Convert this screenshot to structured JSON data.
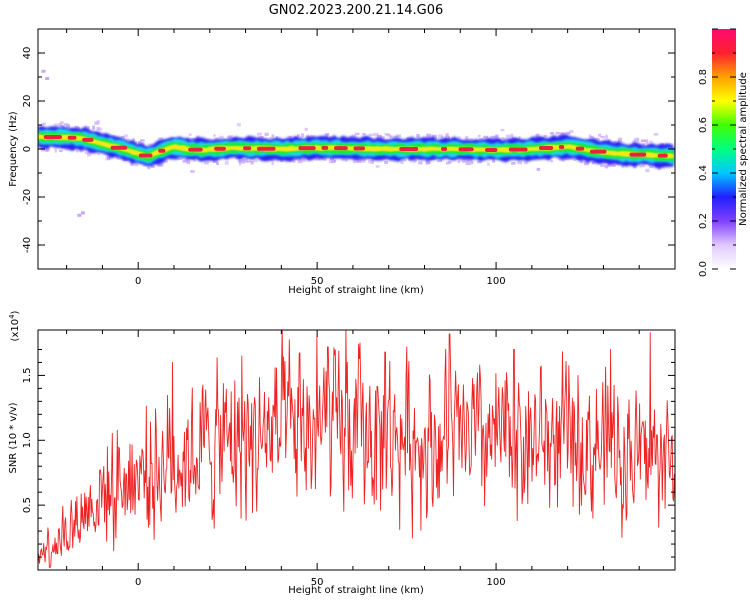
{
  "title": "GN02.2023.200.21.14.G06",
  "colors": {
    "snr_line": "#ee2222",
    "ridge_core": "#e8233a",
    "ridge_inner": "#f6e819",
    "ridge_mid": "#19e83c",
    "ridge_outer": "#1fd8e6",
    "ridge_edge": "#2b24f0",
    "halo": "#c9a6f7"
  },
  "chart_data": [
    {
      "type": "heatmap",
      "name": "spectrogram",
      "xlabel": "Height of straight line (km)",
      "ylabel": "Frequency (Hz)",
      "xlim": [
        -28,
        150
      ],
      "ylim": [
        -50,
        50
      ],
      "xticks": [
        0,
        50,
        100
      ],
      "yticks": [
        -40,
        -20,
        0,
        20,
        40
      ],
      "colorbar": {
        "label": "Normalized spectral amplitude",
        "range": [
          0,
          1
        ],
        "ticks": [
          "0.0",
          "0.2",
          "0.4",
          "0.6",
          "0.8"
        ],
        "tick_values": [
          0,
          0.2,
          0.4,
          0.6,
          0.8
        ],
        "colormap": [
          "#ffffff",
          "#e0c8ff",
          "#8040ff",
          "#2020ff",
          "#00c8ff",
          "#00ff80",
          "#40ff00",
          "#ffff00",
          "#ffa000",
          "#ff2030",
          "#ff0a70"
        ]
      },
      "ridge": {
        "x": [
          -28,
          -22,
          -16,
          -12,
          -8,
          -4,
          0,
          3,
          6,
          10,
          14,
          18,
          22,
          26,
          30,
          40,
          50,
          60,
          70,
          80,
          90,
          100,
          110,
          120,
          128,
          135,
          142,
          150
        ],
        "freq_hz": [
          5,
          5,
          4.5,
          3,
          1.5,
          0,
          -2,
          -3,
          -1,
          1,
          0,
          -0.5,
          0,
          0.5,
          0.3,
          0,
          0.5,
          0.3,
          0,
          0,
          0,
          -0.5,
          0,
          1,
          -1,
          -2,
          -2.5,
          -3
        ]
      }
    },
    {
      "type": "line",
      "name": "snr",
      "xlabel": "Height of straight line (km)",
      "ylabel": "SNR (10 * v/v)",
      "scale_label": "(x10",
      "scale_exp": "4",
      "scale_close": ")",
      "xlim": [
        -28,
        150
      ],
      "ylim": [
        0,
        1.85
      ],
      "xticks": [
        0,
        50,
        100
      ],
      "yticks": [
        0.5,
        1.0,
        1.5
      ],
      "ytick_labels": [
        "0.5",
        "1.0",
        "1.5"
      ],
      "trend": {
        "x": [
          -28,
          -20,
          -10,
          0,
          10,
          20,
          30,
          40,
          50,
          60,
          70,
          80,
          90,
          100,
          110,
          120,
          130,
          140,
          150
        ],
        "y": [
          0.15,
          0.3,
          0.6,
          0.75,
          0.85,
          0.95,
          1.0,
          1.05,
          1.08,
          1.05,
          1.02,
          1.0,
          1.0,
          1.0,
          1.0,
          1.0,
          0.95,
          0.9,
          0.85
        ]
      },
      "peaks": [
        {
          "x": 9.5,
          "y": 1.6
        },
        {
          "x": 29,
          "y": 1.65
        },
        {
          "x": 45,
          "y": 1.67
        },
        {
          "x": 50,
          "y": 1.8
        },
        {
          "x": 53,
          "y": 1.72
        },
        {
          "x": 58,
          "y": 1.85
        },
        {
          "x": 62,
          "y": 1.75
        },
        {
          "x": 69,
          "y": 1.68
        },
        {
          "x": 75,
          "y": 1.72
        },
        {
          "x": 87,
          "y": 1.82
        },
        {
          "x": 105,
          "y": 1.7
        },
        {
          "x": 132,
          "y": 1.7
        },
        {
          "x": 143,
          "y": 1.83
        }
      ]
    }
  ]
}
